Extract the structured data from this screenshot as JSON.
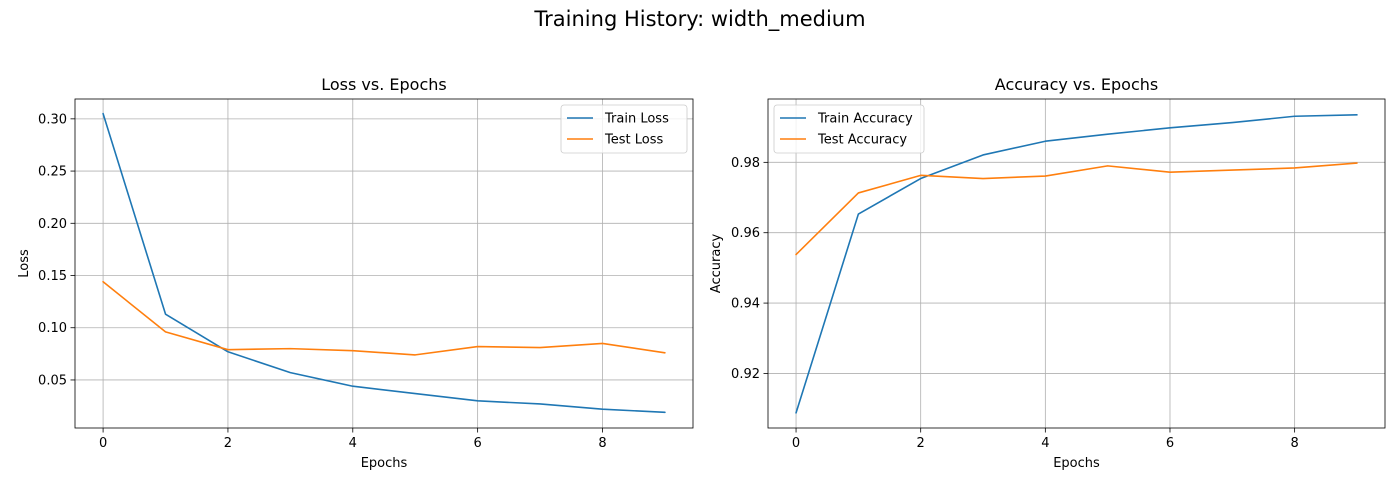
{
  "figure": {
    "suptitle": "Training History: width_medium"
  },
  "chart_data": [
    {
      "type": "line",
      "title": "Loss vs. Epochs",
      "xlabel": "Epochs",
      "ylabel": "Loss",
      "xlim": [
        -0.45,
        9.45
      ],
      "ylim": [
        0.004,
        0.319
      ],
      "xticks": [
        0,
        2,
        4,
        6,
        8
      ],
      "yticks": [
        0.05,
        0.1,
        0.15,
        0.2,
        0.25,
        0.3
      ],
      "ytick_labels": [
        "0.05",
        "0.10",
        "0.15",
        "0.20",
        "0.25",
        "0.30"
      ],
      "grid": true,
      "legend_position": "upper right",
      "x": [
        0,
        1,
        2,
        3,
        4,
        5,
        6,
        7,
        8,
        9
      ],
      "series": [
        {
          "name": "Train Loss",
          "color": "#1f77b4",
          "values": [
            0.305,
            0.113,
            0.077,
            0.057,
            0.044,
            0.037,
            0.03,
            0.027,
            0.022,
            0.019
          ]
        },
        {
          "name": "Test Loss",
          "color": "#ff7f0e",
          "values": [
            0.144,
            0.096,
            0.079,
            0.08,
            0.078,
            0.074,
            0.082,
            0.081,
            0.085,
            0.076
          ]
        }
      ]
    },
    {
      "type": "line",
      "title": "Accuracy vs. Epochs",
      "xlabel": "Epochs",
      "ylabel": "Accuracy",
      "xlim": [
        -0.45,
        9.45
      ],
      "ylim": [
        0.9045,
        0.998
      ],
      "xticks": [
        0,
        2,
        4,
        6,
        8
      ],
      "yticks": [
        0.92,
        0.94,
        0.96,
        0.98
      ],
      "ytick_labels": [
        "0.92",
        "0.94",
        "0.96",
        "0.98"
      ],
      "grid": true,
      "legend_position": "upper left",
      "x": [
        0,
        1,
        2,
        3,
        4,
        5,
        6,
        7,
        8,
        9
      ],
      "series": [
        {
          "name": "Train Accuracy",
          "color": "#1f77b4",
          "values": [
            0.9088,
            0.9653,
            0.9754,
            0.9821,
            0.986,
            0.988,
            0.9898,
            0.9913,
            0.9931,
            0.9935
          ]
        },
        {
          "name": "Test Accuracy",
          "color": "#ff7f0e",
          "values": [
            0.9538,
            0.9713,
            0.9763,
            0.9754,
            0.9761,
            0.979,
            0.9772,
            0.9778,
            0.9784,
            0.9798
          ]
        }
      ]
    }
  ]
}
